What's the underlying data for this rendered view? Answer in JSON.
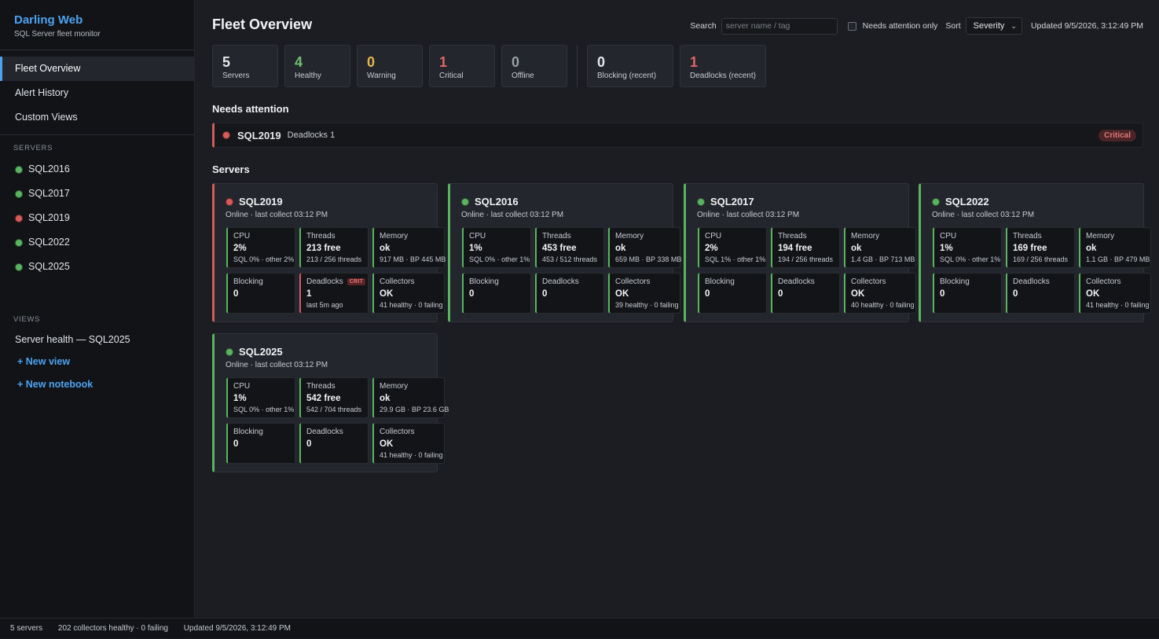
{
  "brand": {
    "title": "Darling Web",
    "subtitle": "SQL Server fleet monitor"
  },
  "nav": {
    "items": [
      {
        "label": "Fleet Overview",
        "active": true
      },
      {
        "label": "Alert History"
      },
      {
        "label": "Custom Views"
      }
    ]
  },
  "sidebar": {
    "servers_label": "SERVERS",
    "servers": [
      {
        "name": "SQL2016",
        "status": "green"
      },
      {
        "name": "SQL2017",
        "status": "green"
      },
      {
        "name": "SQL2019",
        "status": "red"
      },
      {
        "name": "SQL2022",
        "status": "green"
      },
      {
        "name": "SQL2025",
        "status": "green"
      }
    ],
    "views_label": "VIEWS",
    "views": [
      {
        "label": "Server health — SQL2025"
      }
    ],
    "new_view": "+  New view",
    "new_notebook": "+  New notebook"
  },
  "header": {
    "title": "Fleet Overview",
    "search_label": "Search",
    "search_placeholder": "server name / tag",
    "search_value": "",
    "needs_attention_label": "Needs attention only",
    "needs_attention_checked": false,
    "sort_label": "Sort",
    "sort_value": "Severity",
    "updated": "Updated 9/5/2026, 3:12:49 PM"
  },
  "stats": [
    {
      "value": "5",
      "label": "Servers",
      "color": "#e6e8eb"
    },
    {
      "value": "4",
      "label": "Healthy",
      "color": "#6cc070"
    },
    {
      "value": "0",
      "label": "Warning",
      "color": "#e6b84a"
    },
    {
      "value": "1",
      "label": "Critical",
      "color": "#e06666"
    },
    {
      "value": "0",
      "label": "Offline",
      "color": "#9aa0a8"
    }
  ],
  "stats_recent": [
    {
      "value": "0",
      "label": "Blocking (recent)",
      "color": "#e6e8eb"
    },
    {
      "value": "1",
      "label": "Deadlocks (recent)",
      "color": "#e06666"
    }
  ],
  "attention": {
    "heading": "Needs attention",
    "items": [
      {
        "name": "SQL2019",
        "detail": "Deadlocks 1",
        "badge": "Critical"
      }
    ]
  },
  "servers_heading": "Servers",
  "cards": [
    {
      "name": "SQL2019",
      "status": "red",
      "subtitle": "Online · last collect 03:12 PM",
      "cpu": {
        "label": "CPU",
        "value": "2%",
        "sub": "SQL 0% · other 2%"
      },
      "threads": {
        "label": "Threads",
        "value": "213 free",
        "sub": "213 / 256 threads"
      },
      "memory": {
        "label": "Memory",
        "value": "ok",
        "sub": "917 MB · BP 445 MB"
      },
      "blocking": {
        "label": "Blocking",
        "value": "0",
        "sub": ""
      },
      "deadlocks": {
        "label": "Deadlocks",
        "value": "1",
        "sub": "last 5m ago",
        "tag": "CRIT"
      },
      "collectors": {
        "label": "Collectors",
        "value": "OK",
        "sub": "41 healthy · 0 failing"
      }
    },
    {
      "name": "SQL2016",
      "status": "green",
      "subtitle": "Online · last collect 03:12 PM",
      "cpu": {
        "label": "CPU",
        "value": "1%",
        "sub": "SQL 0% · other 1%"
      },
      "threads": {
        "label": "Threads",
        "value": "453 free",
        "sub": "453 / 512 threads"
      },
      "memory": {
        "label": "Memory",
        "value": "ok",
        "sub": "659 MB · BP 338 MB"
      },
      "blocking": {
        "label": "Blocking",
        "value": "0",
        "sub": ""
      },
      "deadlocks": {
        "label": "Deadlocks",
        "value": "0",
        "sub": "",
        "tag": ""
      },
      "collectors": {
        "label": "Collectors",
        "value": "OK",
        "sub": "39 healthy · 0 failing"
      }
    },
    {
      "name": "SQL2017",
      "status": "green",
      "subtitle": "Online · last collect 03:12 PM",
      "cpu": {
        "label": "CPU",
        "value": "2%",
        "sub": "SQL 1% · other 1%"
      },
      "threads": {
        "label": "Threads",
        "value": "194 free",
        "sub": "194 / 256 threads"
      },
      "memory": {
        "label": "Memory",
        "value": "ok",
        "sub": "1.4 GB · BP 713 MB"
      },
      "blocking": {
        "label": "Blocking",
        "value": "0",
        "sub": ""
      },
      "deadlocks": {
        "label": "Deadlocks",
        "value": "0",
        "sub": "",
        "tag": ""
      },
      "collectors": {
        "label": "Collectors",
        "value": "OK",
        "sub": "40 healthy · 0 failing"
      }
    },
    {
      "name": "SQL2022",
      "status": "green",
      "subtitle": "Online · last collect 03:12 PM",
      "cpu": {
        "label": "CPU",
        "value": "1%",
        "sub": "SQL 0% · other 1%"
      },
      "threads": {
        "label": "Threads",
        "value": "169 free",
        "sub": "169 / 256 threads"
      },
      "memory": {
        "label": "Memory",
        "value": "ok",
        "sub": "1.1 GB · BP 479 MB"
      },
      "blocking": {
        "label": "Blocking",
        "value": "0",
        "sub": ""
      },
      "deadlocks": {
        "label": "Deadlocks",
        "value": "0",
        "sub": "",
        "tag": ""
      },
      "collectors": {
        "label": "Collectors",
        "value": "OK",
        "sub": "41 healthy · 0 failing"
      }
    },
    {
      "name": "SQL2025",
      "status": "green",
      "subtitle": "Online · last collect 03:12 PM",
      "cpu": {
        "label": "CPU",
        "value": "1%",
        "sub": "SQL 0% · other 1%"
      },
      "threads": {
        "label": "Threads",
        "value": "542 free",
        "sub": "542 / 704 threads"
      },
      "memory": {
        "label": "Memory",
        "value": "ok",
        "sub": "29.9 GB · BP 23.6 GB"
      },
      "blocking": {
        "label": "Blocking",
        "value": "0",
        "sub": ""
      },
      "deadlocks": {
        "label": "Deadlocks",
        "value": "0",
        "sub": "",
        "tag": ""
      },
      "collectors": {
        "label": "Collectors",
        "value": "OK",
        "sub": "41 healthy · 0 failing"
      }
    }
  ],
  "statusbar": {
    "servers": "5 servers",
    "collectors": "202 collectors healthy · 0 failing",
    "updated": "Updated 9/5/2026, 3:12:49 PM"
  }
}
